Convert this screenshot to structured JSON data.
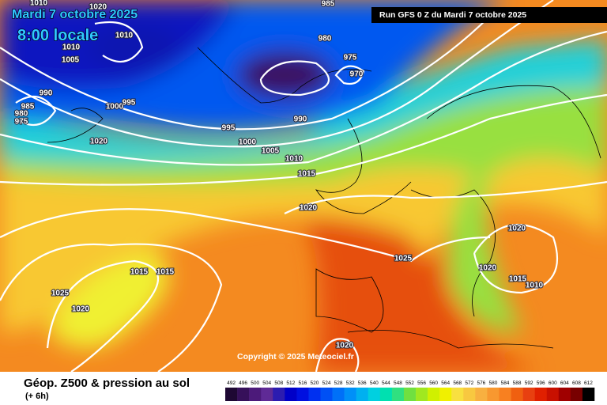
{
  "header": {
    "title": "Mardi 7 octobre 2025",
    "time": "8:00 locale",
    "run": "Run GFS 0 Z du Mardi 7 octobre 2025"
  },
  "map": {
    "copyright": "Copyright © 2025 Meteociel.fr",
    "isobar_labels": [
      985,
      980,
      975,
      970,
      990,
      995,
      1000,
      1005,
      1010,
      1015,
      1020,
      1025,
      1020,
      1020,
      1015,
      1010,
      1015,
      1015,
      1025,
      1020,
      1020,
      985,
      980,
      975,
      990,
      1000,
      995,
      1010,
      1010,
      1005,
      1020,
      1020,
      1010
    ]
  },
  "footer": {
    "title": "Géop. Z500 & pression au sol",
    "lead": "(+ 6h)"
  },
  "legend": {
    "values": [
      492,
      496,
      500,
      504,
      508,
      512,
      516,
      520,
      524,
      528,
      532,
      536,
      540,
      544,
      548,
      552,
      556,
      560,
      564,
      568,
      572,
      576,
      580,
      584,
      588,
      592,
      596,
      600,
      604,
      608,
      612
    ],
    "colors": [
      "#1e0833",
      "#36105a",
      "#4c1a7a",
      "#5f2a96",
      "#2c1cb0",
      "#0000c8",
      "#0010e0",
      "#0030f0",
      "#0050f5",
      "#0070f8",
      "#0090f8",
      "#00b0f0",
      "#00d0e0",
      "#00e0b0",
      "#30e080",
      "#70e040",
      "#a0e820",
      "#d0f000",
      "#f0f000",
      "#f8e040",
      "#f8c840",
      "#f8b040",
      "#f89830",
      "#f88020",
      "#f06010",
      "#e84010",
      "#e02000",
      "#c81000",
      "#a00000",
      "#780000",
      "#000000"
    ]
  }
}
